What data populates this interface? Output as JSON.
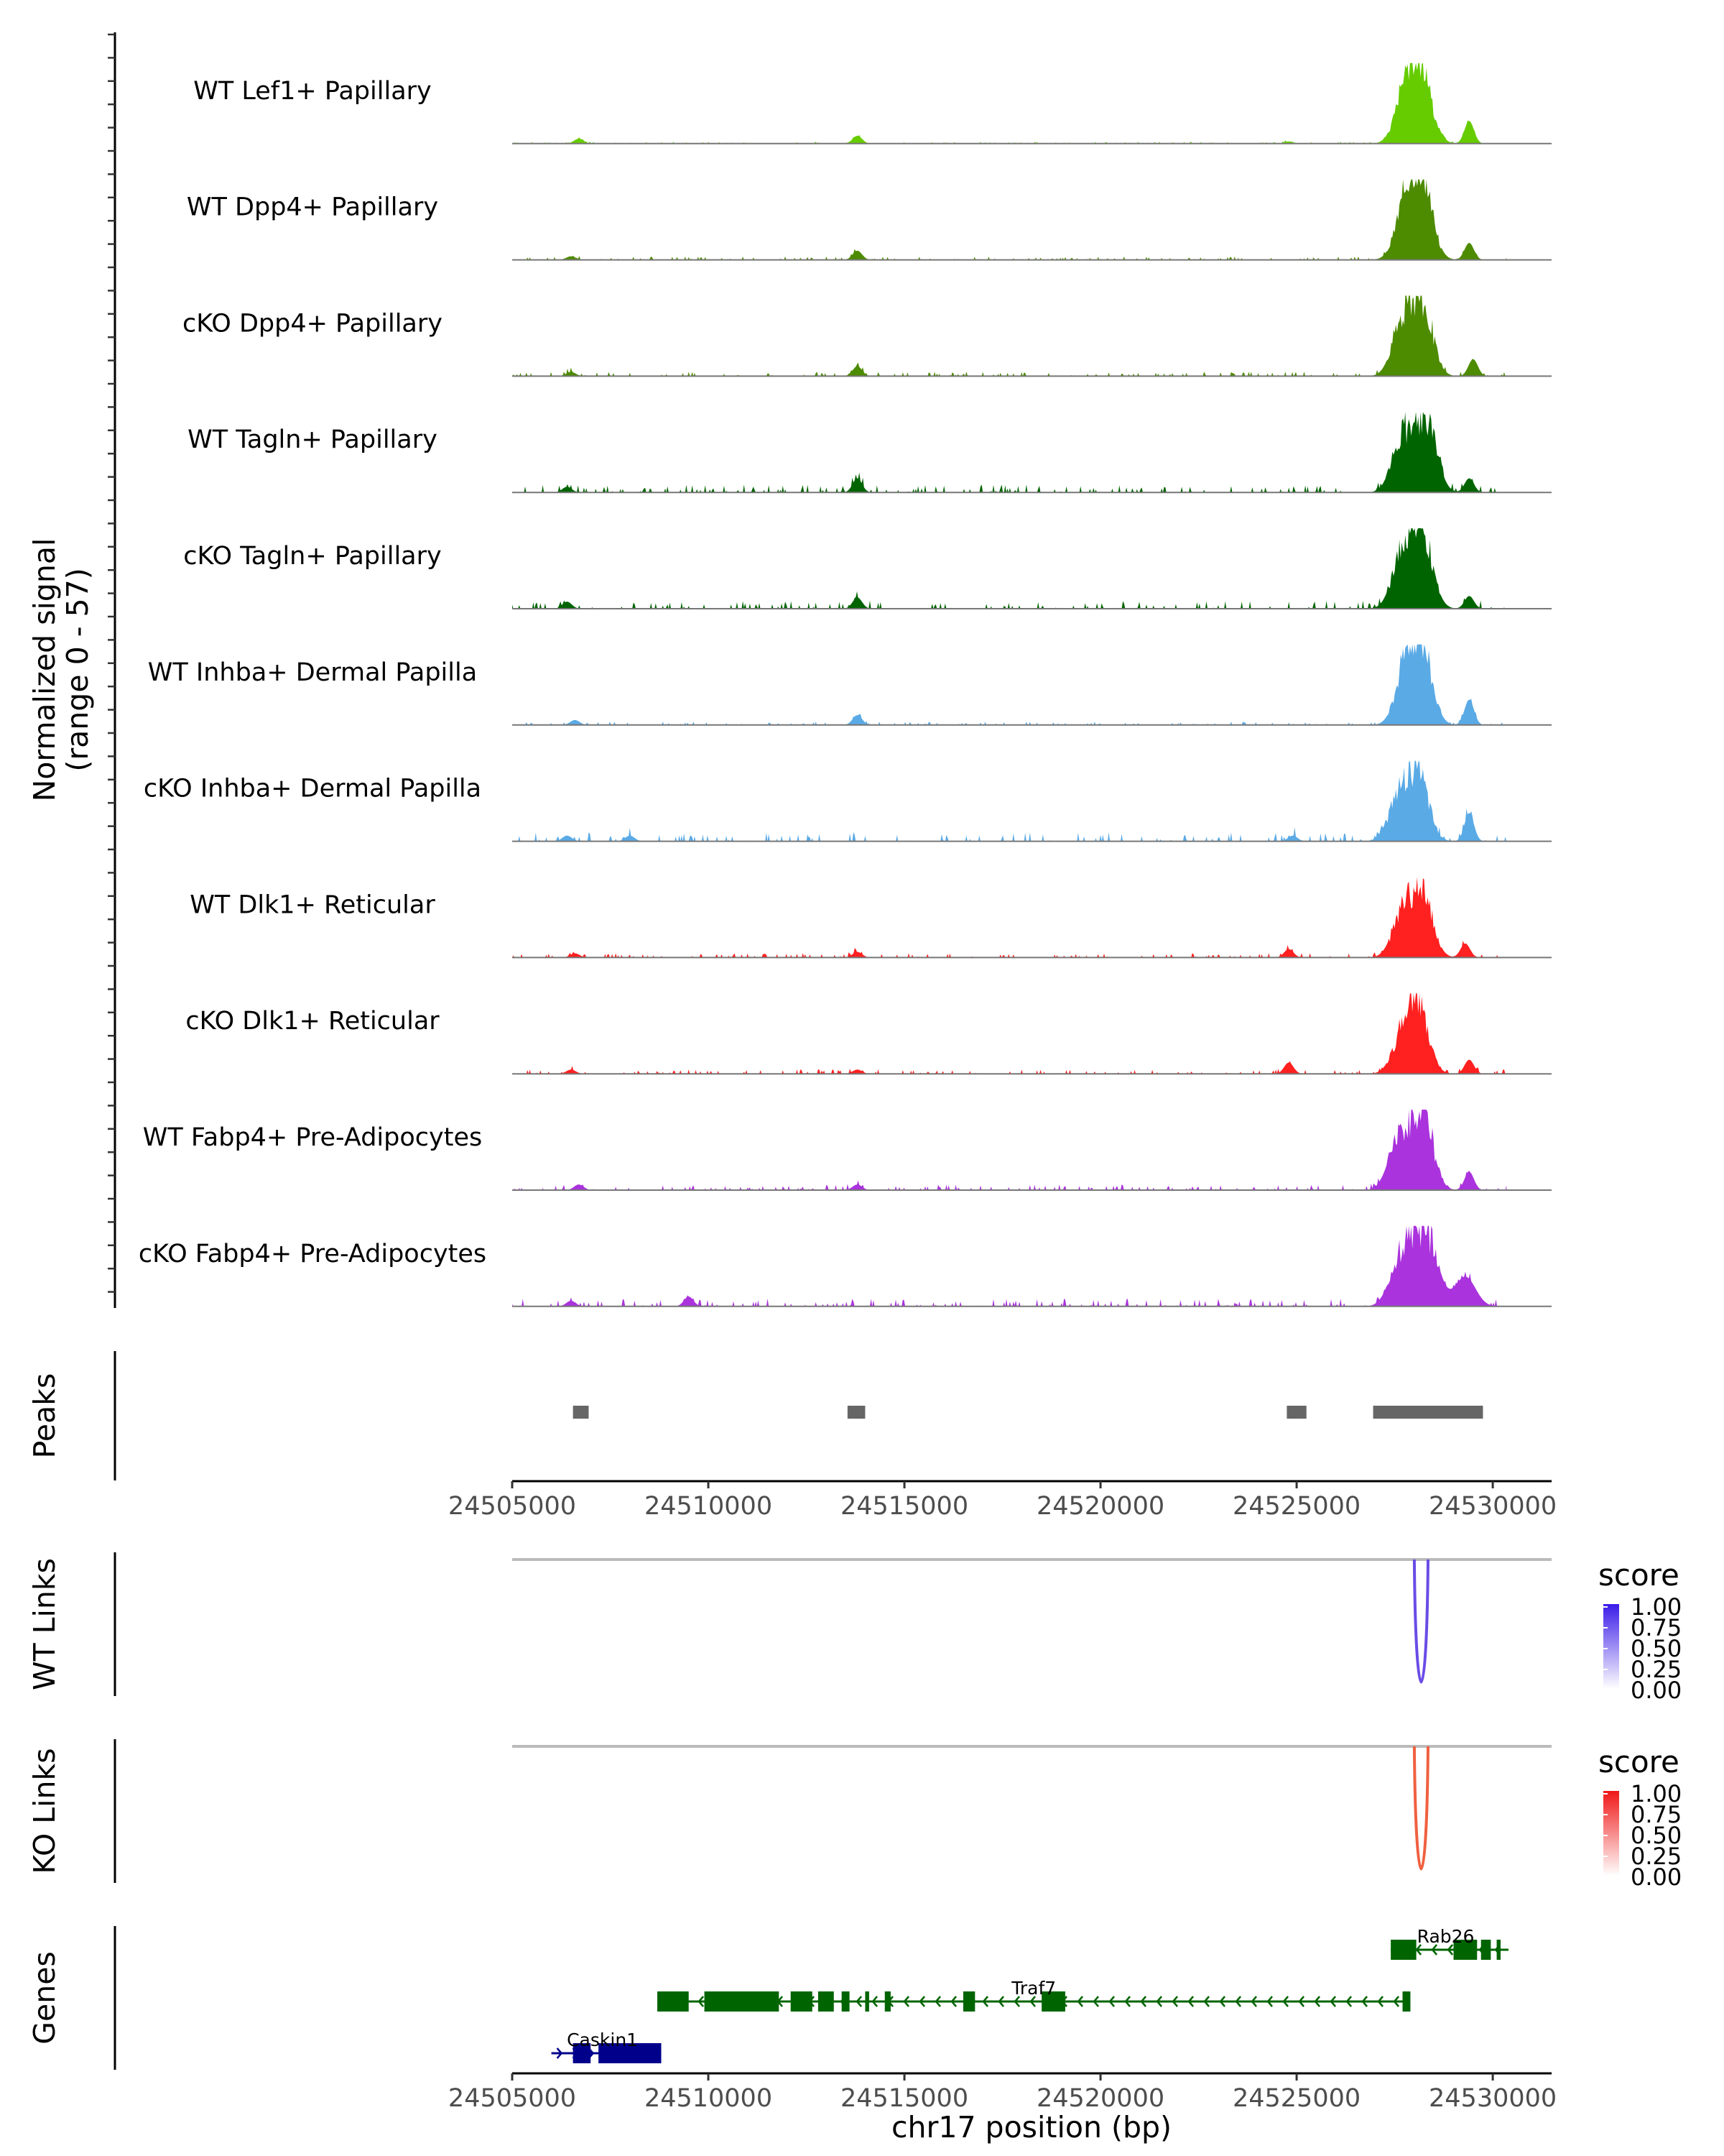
{
  "chart_data": {
    "type": "area",
    "title": "",
    "xlabel": "chr17 position (bp)",
    "xlim": [
      24505000,
      24531500
    ],
    "xticks": [
      24505000,
      24510000,
      24515000,
      24520000,
      24525000,
      24530000
    ],
    "xtick_labels": [
      "24505000",
      "24510000",
      "24515000",
      "24520000",
      "24525000",
      "24530000"
    ],
    "coverage": {
      "ylabel_line1": "Normalized signal",
      "ylabel_line2": "(range 0 - 57)",
      "ylim": [
        0,
        57
      ],
      "tracks": [
        {
          "name": "WT Lef1+ Papillary",
          "color": "#66cc00",
          "peaks": [
            [
              24506700,
              3.5
            ],
            [
              24513800,
              5.5
            ],
            [
              24527800,
              40
            ],
            [
              24528200,
              45
            ],
            [
              24529400,
              16
            ],
            [
              24524800,
              1.5
            ]
          ],
          "noise": 0.8,
          "seed": 1
        },
        {
          "name": "WT Dpp4+ Papillary",
          "color": "#4d8b00",
          "peaks": [
            [
              24506500,
              2.5
            ],
            [
              24513800,
              6.5
            ],
            [
              24527800,
              40
            ],
            [
              24528200,
              52
            ],
            [
              24529400,
              12
            ]
          ],
          "noise": 1.5,
          "seed": 2
        },
        {
          "name": "cKO Dpp4+ Papillary",
          "color": "#4d8b00",
          "peaks": [
            [
              24506500,
              3
            ],
            [
              24513800,
              7
            ],
            [
              24527700,
              37
            ],
            [
              24528200,
              48
            ],
            [
              24529500,
              12
            ]
          ],
          "noise": 2.0,
          "seed": 3
        },
        {
          "name": "WT Tagln+ Papillary",
          "color": "#006400",
          "peaks": [
            [
              24506400,
              4
            ],
            [
              24513800,
              10
            ],
            [
              24527700,
              40
            ],
            [
              24528300,
              52
            ],
            [
              24529400,
              10
            ]
          ],
          "noise": 3.5,
          "seed": 4
        },
        {
          "name": "cKO Tagln+ Papillary",
          "color": "#006400",
          "peaks": [
            [
              24506400,
              5
            ],
            [
              24513800,
              8
            ],
            [
              24527700,
              38
            ],
            [
              24528200,
              52
            ],
            [
              24529400,
              9
            ]
          ],
          "noise": 3.5,
          "seed": 5
        },
        {
          "name": "WT Inhba+ Dermal Papilla",
          "color": "#5aaae6",
          "peaks": [
            [
              24506600,
              3.5
            ],
            [
              24513800,
              7
            ],
            [
              24527800,
              40
            ],
            [
              24528200,
              48
            ],
            [
              24529400,
              18
            ]
          ],
          "noise": 1.5,
          "seed": 6
        },
        {
          "name": "cKO Inhba+ Dermal Papilla",
          "color": "#5aaae6",
          "peaks": [
            [
              24506400,
              4
            ],
            [
              24508000,
              4
            ],
            [
              24527600,
              30
            ],
            [
              24528100,
              46
            ],
            [
              24529400,
              20
            ],
            [
              24524900,
              4
            ]
          ],
          "noise": 4.0,
          "seed": 7
        },
        {
          "name": "WT Dlk1+ Reticular",
          "color": "#ff2020",
          "peaks": [
            [
              24506600,
              3
            ],
            [
              24513800,
              4
            ],
            [
              24524800,
              6
            ],
            [
              24527700,
              30
            ],
            [
              24528200,
              45
            ],
            [
              24529300,
              10
            ]
          ],
          "noise": 2.0,
          "seed": 8
        },
        {
          "name": "cKO Dlk1+ Reticular",
          "color": "#ff2020",
          "peaks": [
            [
              24506500,
              3
            ],
            [
              24513800,
              3
            ],
            [
              24524800,
              8
            ],
            [
              24527700,
              25
            ],
            [
              24528100,
              46
            ],
            [
              24529400,
              10
            ]
          ],
          "noise": 2.0,
          "seed": 9
        },
        {
          "name": "WT Fabp4+ Pre-Adipocytes",
          "color": "#aa33dd",
          "peaks": [
            [
              24506700,
              4
            ],
            [
              24513800,
              4
            ],
            [
              24527600,
              35
            ],
            [
              24528200,
              56
            ],
            [
              24529400,
              13
            ]
          ],
          "noise": 2.5,
          "seed": 10
        },
        {
          "name": "cKO Fabp4+ Pre-Adipocytes",
          "color": "#aa33dd",
          "peaks": [
            [
              24506500,
              4
            ],
            [
              24509500,
              7
            ],
            [
              24527600,
              27
            ],
            [
              24528000,
              34
            ],
            [
              24528400,
              38
            ],
            [
              24529300,
              21
            ]
          ],
          "noise": 3.5,
          "seed": 11
        }
      ]
    },
    "peaks_track": {
      "label": "Peaks",
      "color": "#666666",
      "regions": [
        [
          24506550,
          24506950
        ],
        [
          24513550,
          24514000
        ],
        [
          24524750,
          24525250
        ],
        [
          24526950,
          24529750
        ]
      ]
    },
    "links": [
      {
        "label": "WT Links",
        "legend_title": "score",
        "legend_ticks": [
          "1.00",
          "0.75",
          "0.50",
          "0.25",
          "0.00"
        ],
        "arc_from": 24528000,
        "arc_to": 24528350,
        "score": 0.85,
        "color": "#6a4ce6",
        "scale_high": "#3b1ce8"
      },
      {
        "label": "KO Links",
        "legend_title": "score",
        "legend_ticks": [
          "1.00",
          "0.75",
          "0.50",
          "0.25",
          "0.00"
        ],
        "arc_from": 24528000,
        "arc_to": 24528350,
        "score": 0.7,
        "color": "#f06040",
        "scale_high": "#f01818"
      }
    ],
    "genes_track": {
      "label": "Genes",
      "genes": [
        {
          "name": "Rab26",
          "color": "#006400",
          "strand": "-",
          "start": 24527400,
          "end": 24530400,
          "exons": [
            [
              24527400,
              24528050
            ],
            [
              24529000,
              24529600
            ],
            [
              24529700,
              24529950
            ],
            [
              24530100,
              24530200
            ]
          ]
        },
        {
          "name": "Traf7",
          "color": "#006400",
          "strand": "-",
          "start": 24508700,
          "end": 24527900,
          "exons": [
            [
              24508700,
              24509500
            ],
            [
              24509900,
              24511800
            ],
            [
              24512100,
              24512650
            ],
            [
              24512800,
              24513200
            ],
            [
              24513400,
              24513600
            ],
            [
              24514000,
              24514100
            ],
            [
              24514500,
              24514650
            ],
            [
              24516500,
              24516800
            ],
            [
              24518500,
              24519100
            ],
            [
              24527700,
              24527900
            ]
          ]
        },
        {
          "name": "Caskin1",
          "color": "#00008b",
          "strand": "+",
          "start": 24506000,
          "end": 24508800,
          "exons": [
            [
              24506550,
              24507000
            ],
            [
              24507200,
              24508800
            ]
          ]
        }
      ]
    }
  }
}
